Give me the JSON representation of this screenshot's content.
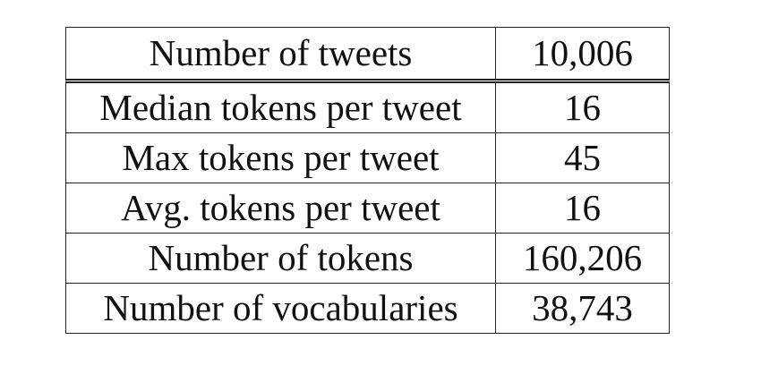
{
  "table": {
    "header": {
      "label": "Number of tweets",
      "value": "10,006"
    },
    "rows": [
      {
        "label": "Median tokens per tweet",
        "value": "16"
      },
      {
        "label": "Max tokens per tweet",
        "value": "45"
      },
      {
        "label": "Avg. tokens per tweet",
        "value": "16"
      },
      {
        "label": "Number of tokens",
        "value": "160,206"
      },
      {
        "label": "Number of vocabularies",
        "value": "38,743"
      }
    ]
  }
}
